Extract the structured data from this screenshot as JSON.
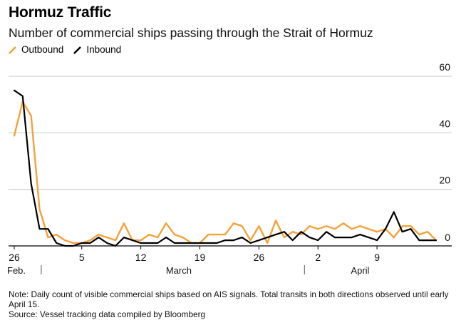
{
  "chart_data": {
    "type": "line",
    "title": "Hormuz Traffic",
    "subtitle": "Number of commercial ships passing through the Strait of Hormuz",
    "ylim": [
      0,
      60
    ],
    "yticks": [
      0,
      20,
      40,
      60
    ],
    "x_tick_labels": [
      "26",
      "5",
      "12",
      "19",
      "26",
      "2",
      "9"
    ],
    "x_tick_indices": [
      0,
      8,
      15,
      22,
      29,
      36,
      43
    ],
    "month_labels": [
      "Feb.",
      "March",
      "April"
    ],
    "colors": {
      "Outbound": "#f5a13a",
      "Inbound": "#000000"
    },
    "series": [
      {
        "name": "Outbound",
        "values": [
          39,
          51,
          46,
          13,
          3,
          4,
          2,
          1,
          1,
          2,
          4,
          3,
          2,
          8,
          2,
          2,
          4,
          3,
          8,
          4,
          3,
          1,
          1,
          4,
          4,
          4,
          8,
          7,
          2,
          7,
          1,
          9,
          3,
          5,
          4,
          7,
          6,
          7,
          6,
          8,
          6,
          7,
          6,
          5,
          6,
          3,
          7,
          7,
          4,
          5,
          2
        ]
      },
      {
        "name": "Inbound",
        "values": [
          55,
          53,
          22,
          6,
          6,
          1,
          0,
          0,
          1,
          1,
          3,
          1,
          0,
          3,
          2,
          1,
          1,
          1,
          3,
          1,
          1,
          1,
          1,
          1,
          1,
          2,
          2,
          3,
          1,
          2,
          3,
          4,
          5,
          2,
          5,
          3,
          2,
          5,
          3,
          3,
          3,
          4,
          3,
          2,
          6,
          12,
          5,
          6,
          2,
          2,
          2
        ]
      }
    ]
  },
  "note": "Note: Daily count of visible commercial ships based on AIS signals. Total transits in both directions observed until early April 15.",
  "source": "Source: Vessel tracking data compiled by Bloomberg"
}
